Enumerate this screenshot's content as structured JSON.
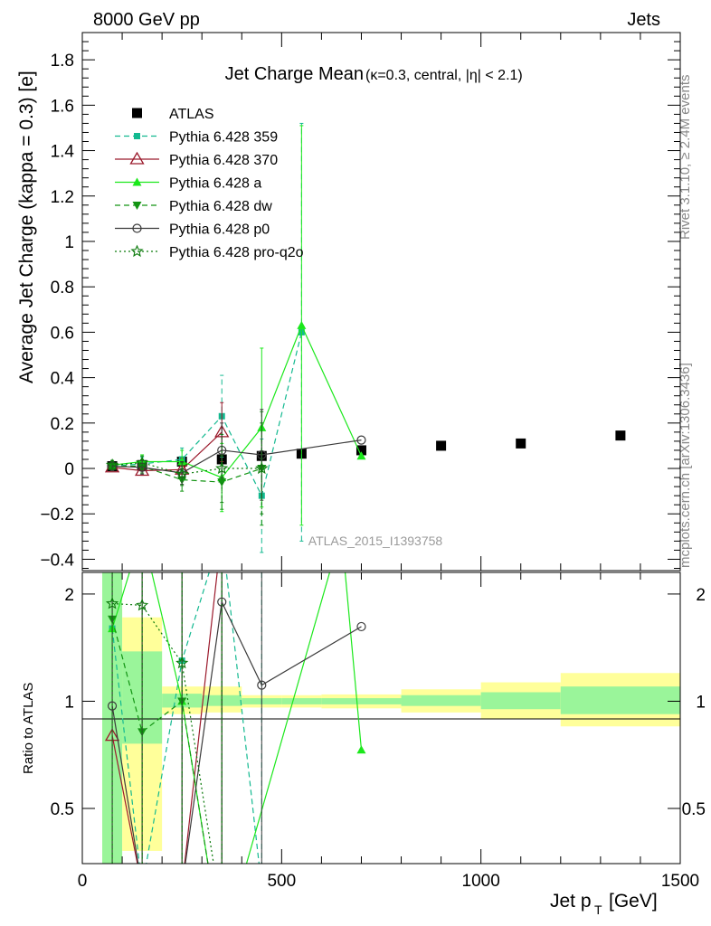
{
  "header": {
    "left": "8000 GeV pp",
    "right": "Jets"
  },
  "side_labels": {
    "rivet": "Rivet 3.1.10, ≥ 2.4M events",
    "mcplots": "mcplots.cern.ch [arXiv:1306.3436]"
  },
  "chart_data": [
    {
      "type": "line",
      "title": "Jet Charge Mean",
      "subtitle": "(κ=0.3, central, |η| < 2.1)",
      "ylabel": "Average Jet Charge (kappa = 0.3) [e]",
      "watermark": "ATLAS_2015_I1393758",
      "xlim": [
        0,
        1500
      ],
      "ylim": [
        -0.45,
        1.92
      ],
      "yticks": [
        -0.4,
        -0.2,
        0,
        0.2,
        0.4,
        0.6,
        0.8,
        1,
        1.2,
        1.4,
        1.6,
        1.8
      ],
      "ytick_labels": [
        "−0.4",
        "−0.2",
        "0",
        "0.2",
        "0.4",
        "0.6",
        "0.8",
        "1",
        "1.2",
        "1.4",
        "1.6",
        "1.8"
      ],
      "legend_position": "top-left",
      "series": [
        {
          "name": "ATLAS",
          "color": "#000000",
          "marker": "square-filled",
          "line": "none",
          "x": [
            75,
            150,
            250,
            350,
            450,
            550,
            700,
            900,
            1100,
            1350
          ],
          "y": [
            0.01,
            0.015,
            0.03,
            0.04,
            0.055,
            0.065,
            0.08,
            0.1,
            0.11,
            0.145
          ]
        },
        {
          "name": "Pythia 6.428 359",
          "color": "#13b990",
          "marker": "square-small",
          "line": "dashed",
          "x": [
            75,
            150,
            250,
            350,
            450,
            550
          ],
          "y": [
            0.01,
            0.02,
            0.04,
            0.23,
            -0.12,
            0.6
          ],
          "err": [
            0.02,
            0.03,
            0.05,
            0.18,
            0.25,
            0.92
          ]
        },
        {
          "name": "Pythia 6.428 370",
          "color": "#9b1a2c",
          "marker": "triangle-open",
          "line": "solid",
          "x": [
            75,
            150,
            250,
            350
          ],
          "y": [
            0.005,
            -0.01,
            -0.005,
            0.16
          ],
          "err": [
            0.01,
            0.02,
            0.05,
            0.13
          ]
        },
        {
          "name": "Pythia 6.428 a",
          "color": "#1be81b",
          "marker": "triangle-filled",
          "line": "solid",
          "x": [
            75,
            150,
            250,
            350,
            450,
            550,
            700
          ],
          "y": [
            0.015,
            0.03,
            0.03,
            -0.04,
            0.18,
            0.63,
            0.055
          ],
          "err": [
            0.02,
            0.03,
            0.05,
            0.15,
            0.35,
            0.88,
            0.0
          ]
        },
        {
          "name": "Pythia 6.428 dw",
          "color": "#139413",
          "marker": "triangle-down-filled",
          "line": "dashed",
          "x": [
            75,
            150,
            250,
            350,
            450
          ],
          "y": [
            0.01,
            0.01,
            -0.05,
            -0.06,
            0.0
          ],
          "err": [
            0.02,
            0.03,
            0.05,
            0.12,
            0.25
          ]
        },
        {
          "name": "Pythia 6.428 p0",
          "color": "#3a3a3a",
          "marker": "circle-open",
          "line": "solid",
          "x": [
            75,
            150,
            250,
            350,
            450,
            700
          ],
          "y": [
            0.01,
            0.005,
            -0.02,
            0.08,
            0.06,
            0.125
          ],
          "err": [
            0.02,
            0.03,
            0.05,
            0.12,
            0.2,
            0.0
          ]
        },
        {
          "name": "Pythia 6.428 pro-q2o",
          "color": "#0b7a0b",
          "marker": "star-open",
          "line": "dotted",
          "x": [
            75,
            150,
            250,
            350,
            450
          ],
          "y": [
            0.015,
            0.025,
            -0.025,
            0.0,
            0.0
          ],
          "err": [
            0.02,
            0.03,
            0.05,
            0.15,
            0.2
          ]
        }
      ]
    },
    {
      "type": "line",
      "ylabel": "Ratio to ATLAS",
      "xlabel": "Jet p_T [GeV]",
      "xlim": [
        0,
        1500
      ],
      "ylim": [
        0.35,
        2.3
      ],
      "log_y": true,
      "xticks": [
        0,
        500,
        1000,
        1500
      ],
      "yticks": [
        0.5,
        1,
        2
      ],
      "ytick_labels": [
        "0.5",
        "1",
        "2"
      ],
      "bands": [
        {
          "x0": 50,
          "x1": 100,
          "stat": [
            0.0,
            2.5
          ],
          "total": [
            0.0,
            2.5
          ]
        },
        {
          "x0": 100,
          "x1": 200,
          "stat": [
            0.76,
            1.38
          ],
          "total": [
            0.38,
            1.72
          ]
        },
        {
          "x0": 200,
          "x1": 300,
          "stat": [
            0.96,
            1.05
          ],
          "total": [
            0.92,
            1.1
          ]
        },
        {
          "x0": 300,
          "x1": 400,
          "stat": [
            0.97,
            1.04
          ],
          "total": [
            0.93,
            1.1
          ]
        },
        {
          "x0": 400,
          "x1": 500,
          "stat": [
            0.98,
            1.02
          ],
          "total": [
            0.96,
            1.04
          ]
        },
        {
          "x0": 500,
          "x1": 600,
          "stat": [
            0.98,
            1.02
          ],
          "total": [
            0.96,
            1.04
          ]
        },
        {
          "x0": 600,
          "x1": 800,
          "stat": [
            0.98,
            1.02
          ],
          "total": [
            0.955,
            1.045
          ]
        },
        {
          "x0": 800,
          "x1": 1000,
          "stat": [
            0.97,
            1.04
          ],
          "total": [
            0.93,
            1.08
          ]
        },
        {
          "x0": 1000,
          "x1": 1200,
          "stat": [
            0.95,
            1.06
          ],
          "total": [
            0.89,
            1.13
          ]
        },
        {
          "x0": 1200,
          "x1": 1500,
          "stat": [
            0.92,
            1.1
          ],
          "total": [
            0.85,
            1.2
          ]
        }
      ],
      "series": [
        {
          "name": "Pythia 6.428 359",
          "color": "#13b990",
          "line": "dashed",
          "x": [
            75,
            150,
            250,
            350,
            450
          ],
          "y": [
            1.6,
            0.3,
            1.3,
            3.0,
            0.3
          ]
        },
        {
          "name": "Pythia 6.428 370",
          "color": "#9b1a2c",
          "line": "solid",
          "x": [
            75,
            150,
            250,
            350
          ],
          "y": [
            0.8,
            0.3,
            0.3,
            3.0
          ]
        },
        {
          "name": "Pythia 6.428 a",
          "color": "#1be81b",
          "line": "solid",
          "x": [
            75,
            150,
            250,
            350,
            650,
            700
          ],
          "y": [
            1.6,
            3.0,
            1.0,
            0.2,
            3.0,
            0.73
          ]
        },
        {
          "name": "Pythia 6.428 dw",
          "color": "#139413",
          "line": "dashed",
          "x": [
            75,
            150,
            250,
            350
          ],
          "y": [
            1.7,
            0.82,
            1.0,
            0.2
          ]
        },
        {
          "name": "Pythia 6.428 p0",
          "color": "#3a3a3a",
          "line": "solid",
          "x": [
            75,
            150,
            250,
            350,
            450,
            700
          ],
          "y": [
            0.97,
            0.3,
            0.3,
            1.9,
            1.11,
            1.62
          ]
        },
        {
          "name": "Pythia 6.428 pro-q2o",
          "color": "#0b7a0b",
          "line": "dotted",
          "x": [
            75,
            150,
            250,
            350
          ],
          "y": [
            1.88,
            1.86,
            1.28,
            0.25
          ]
        }
      ]
    }
  ]
}
